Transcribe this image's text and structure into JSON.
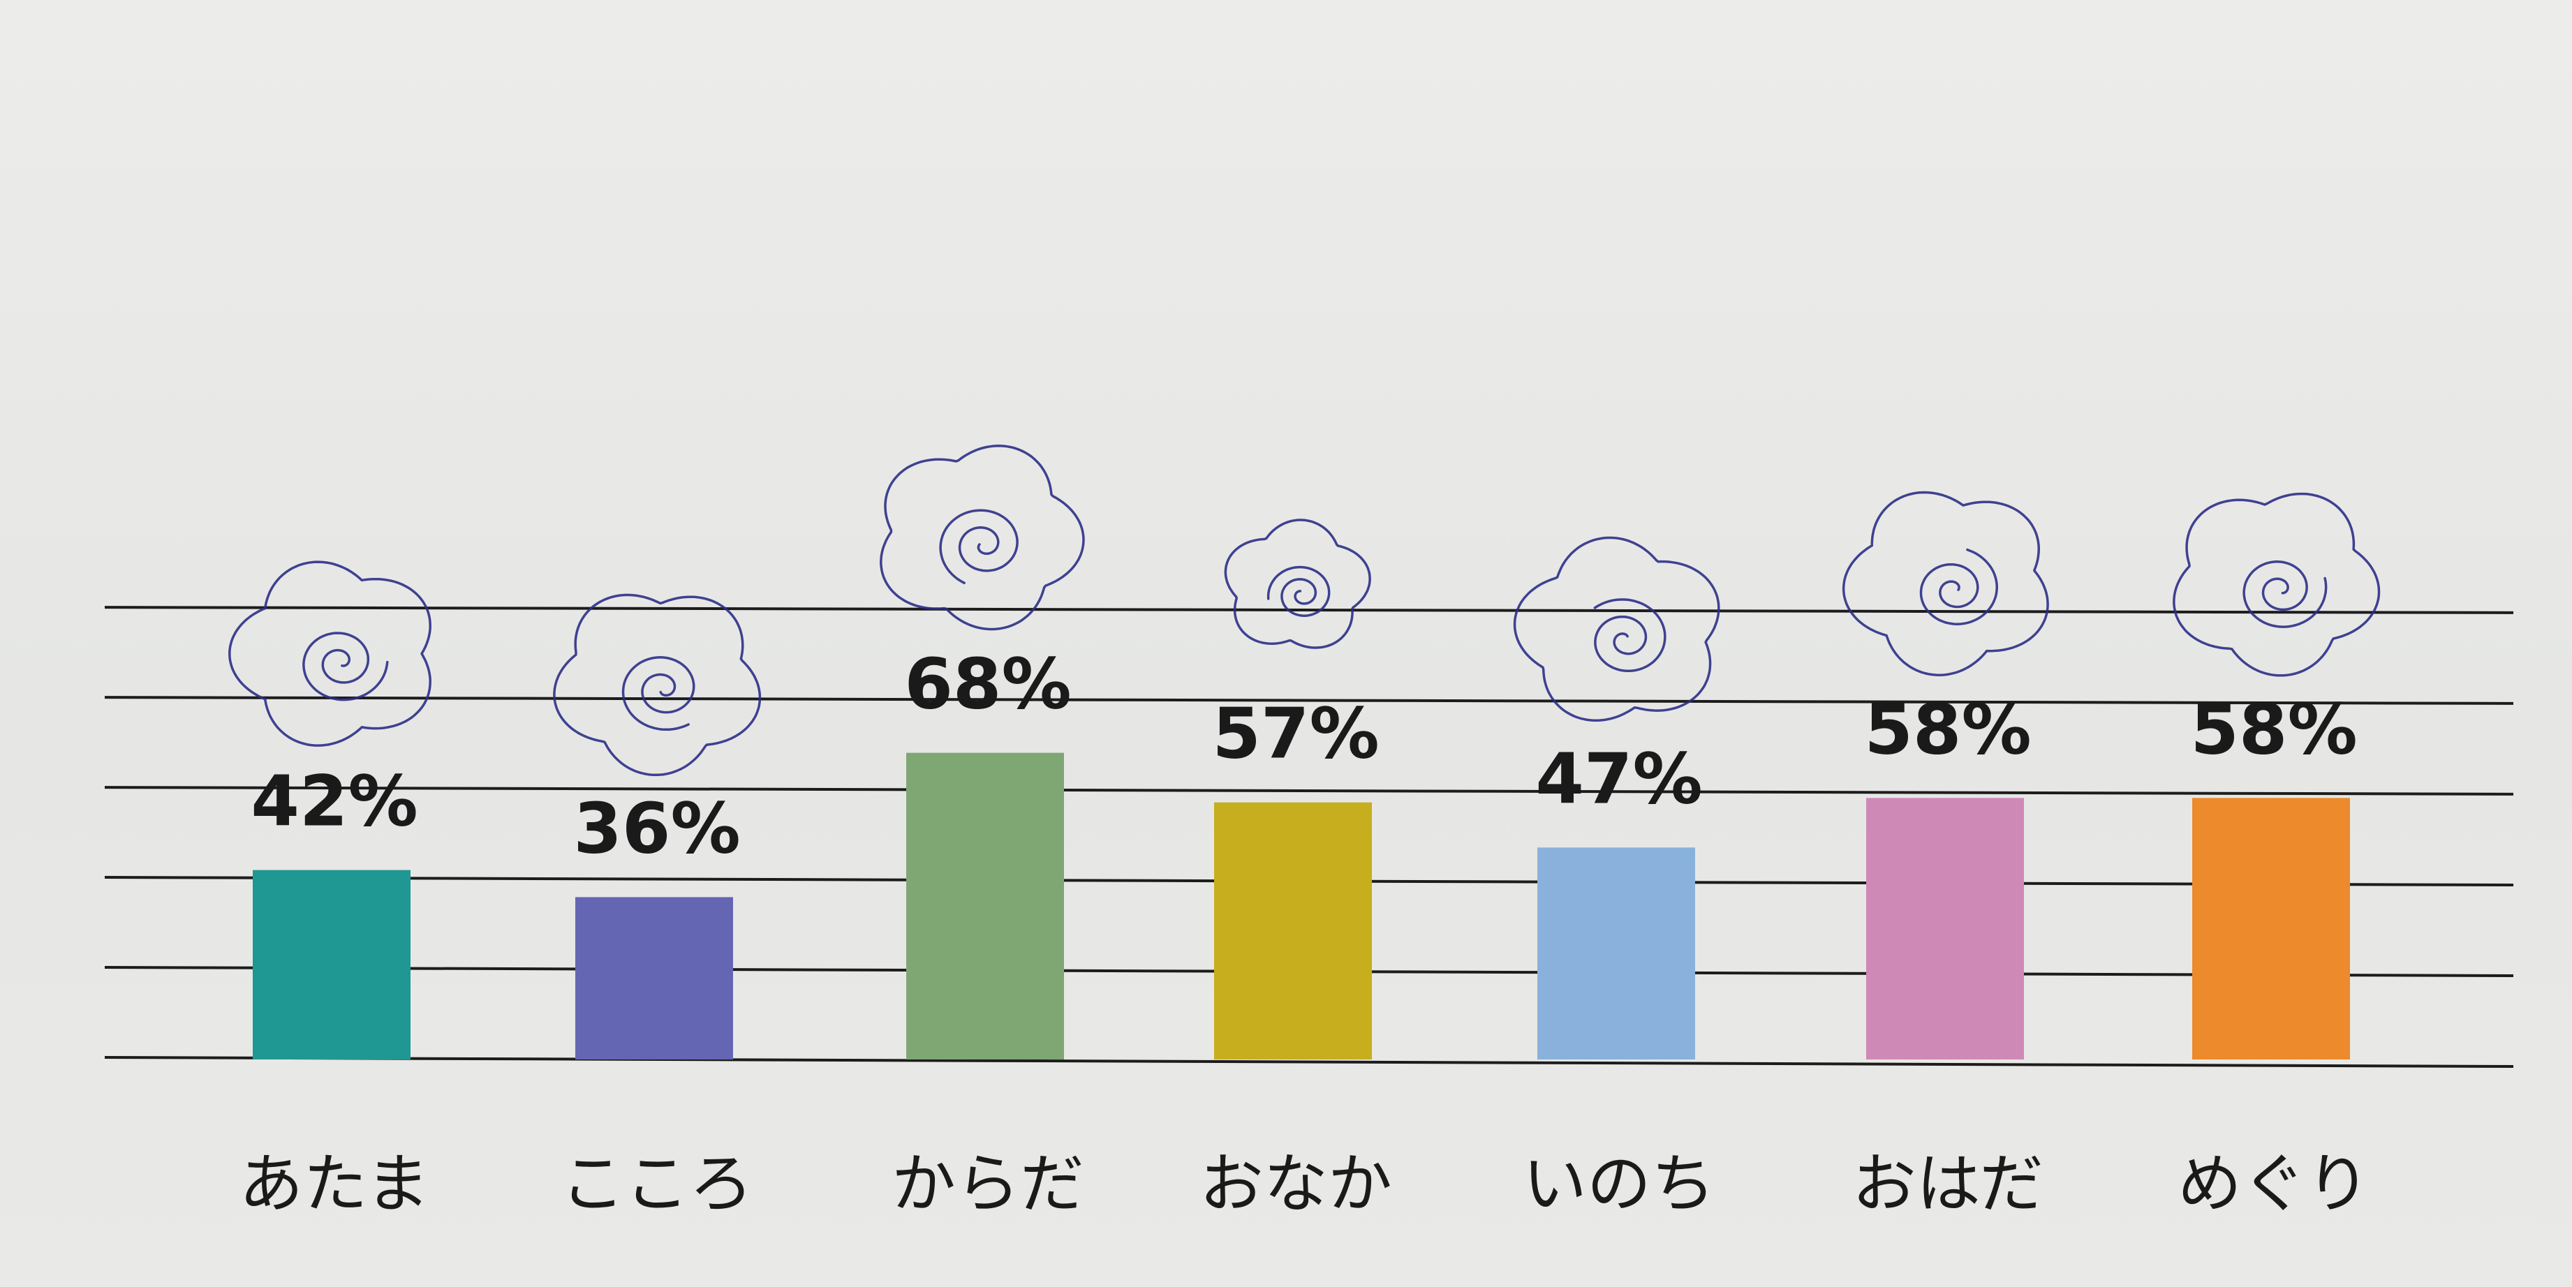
{
  "chart_data": {
    "type": "bar",
    "categories": [
      "あたま",
      "こころ",
      "からだ",
      "おなか",
      "いのち",
      "おはだ",
      "めぐり"
    ],
    "values": [
      42,
      36,
      68,
      57,
      47,
      58,
      58
    ],
    "value_labels": [
      "42%",
      "36%",
      "68%",
      "57%",
      "47%",
      "58%",
      "58%"
    ],
    "colors": [
      "#1f9792",
      "#6466b3",
      "#7fa774",
      "#c6ae1e",
      "#89b1dc",
      "#cf89b6",
      "#ec8a2c"
    ],
    "ylim": [
      0,
      100
    ],
    "grid": true,
    "legend": "none",
    "annotations": [
      "hand-drawn spiral doodle above each bar"
    ]
  }
}
